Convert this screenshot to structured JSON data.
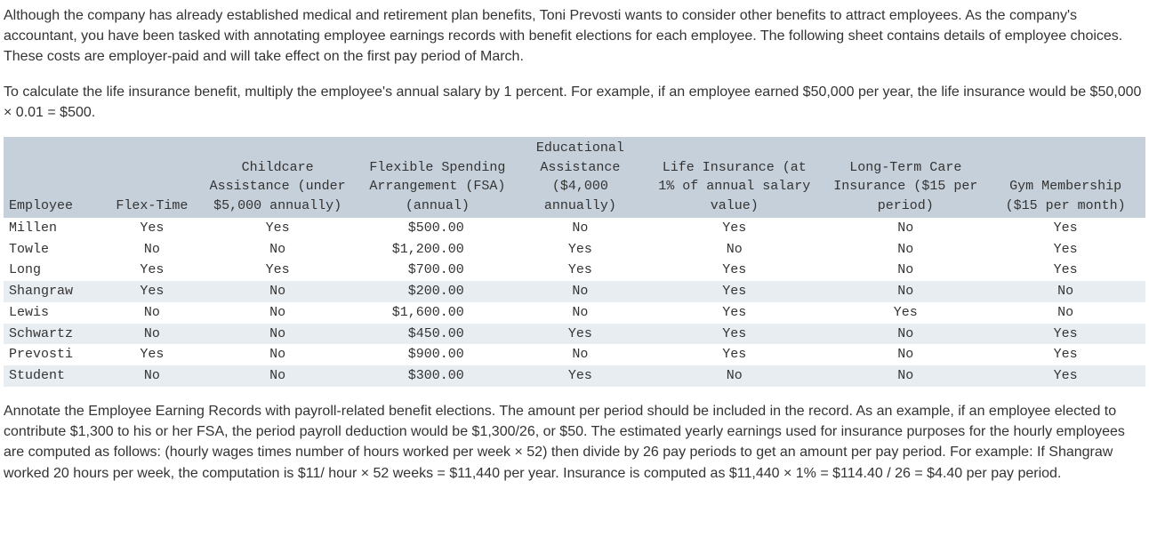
{
  "para1": "Although the company has already established medical and retirement plan benefits, Toni Prevosti wants to consider other benefits to attract employees. As the company's accountant, you have been tasked with annotating employee earnings records with benefit elections for each employee. The following sheet contains details of employee choices. These costs are employer-paid and will take effect on the first pay period of March.",
  "para2": "To calculate the life insurance benefit, multiply the employee's annual salary by 1 percent. For example, if an employee earned $50,000 per year, the life insurance would be $50,000 × 0.01 = $500.",
  "para3": "Annotate the Employee Earning Records with payroll-related benefit elections. The amount per period should be included in the record. As an example, if an employee elected to contribute $1,300 to his or her FSA, the period payroll deduction would be $1,300/26, or $50. The estimated yearly earnings used for insurance purposes for the hourly employees are computed as follows: (hourly wages times number of hours worked per week × 52) then divide by 26 pay periods to get an amount per pay period. For example: If Shangraw worked 20 hours per week, the computation is $11/ hour × 52 weeks = $11,440 per year. Insurance is computed as $11,440 × 1% = $114.40 / 26 = $4.40 per pay period.",
  "table": {
    "header_bg": "#c6d0db",
    "shade_bg": "#e8edf2",
    "columns": [
      "Employee",
      "Flex-Time",
      "Childcare\nAssistance (under\n$5,000 annually)",
      "Flexible Spending\nArrangement (FSA)\n(annual)",
      "Educational\nAssistance\n($4,000\nannually)",
      "Life Insurance (at\n1% of annual salary\nvalue)",
      "Long-Term Care\nInsurance ($15 per\nperiod)",
      "Gym Membership\n($15 per month)"
    ],
    "rows": [
      {
        "shade": false,
        "cells": [
          "Millen",
          "Yes",
          "Yes",
          "$500.00",
          "No",
          "Yes",
          "No",
          "Yes"
        ]
      },
      {
        "shade": false,
        "cells": [
          "Towle",
          "No",
          "No",
          "$1,200.00",
          "Yes",
          "No",
          "No",
          "Yes"
        ]
      },
      {
        "shade": false,
        "cells": [
          "Long",
          "Yes",
          "Yes",
          "$700.00",
          "Yes",
          "Yes",
          "No",
          "Yes"
        ]
      },
      {
        "shade": true,
        "cells": [
          "Shangraw",
          "Yes",
          "No",
          "$200.00",
          "No",
          "Yes",
          "No",
          "No"
        ]
      },
      {
        "shade": false,
        "cells": [
          "Lewis",
          "No",
          "No",
          "$1,600.00",
          "No",
          "Yes",
          "Yes",
          "No"
        ]
      },
      {
        "shade": true,
        "cells": [
          "Schwartz",
          "No",
          "No",
          "$450.00",
          "Yes",
          "Yes",
          "No",
          "Yes"
        ]
      },
      {
        "shade": false,
        "cells": [
          "Prevosti",
          "Yes",
          "No",
          "$900.00",
          "No",
          "Yes",
          "No",
          "Yes"
        ]
      },
      {
        "shade": true,
        "cells": [
          "Student",
          "No",
          "No",
          "$300.00",
          "Yes",
          "No",
          "No",
          "Yes"
        ]
      }
    ],
    "col_widths_pct": [
      9,
      8,
      14,
      14,
      11,
      16,
      14,
      14
    ]
  }
}
